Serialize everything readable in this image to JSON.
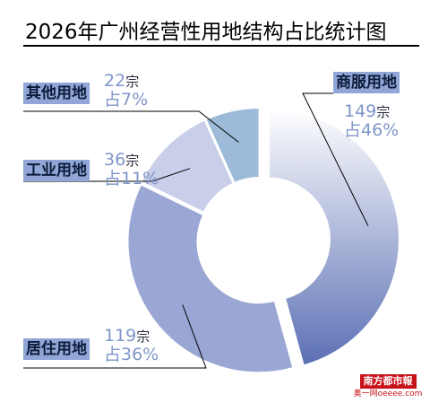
{
  "title": "2026年广州经营性用地结构占比统计图",
  "chart_data": {
    "type": "pie",
    "variant": "donut",
    "title": "2026年广州经营性用地结构占比统计图",
    "categories": [
      "商服用地",
      "居住用地",
      "工业用地",
      "其他用地"
    ],
    "values": [
      149,
      119,
      36,
      22
    ],
    "percent_labels": [
      "46%",
      "36%",
      "11%",
      "7%"
    ],
    "unit": "宗",
    "percent_prefix": "占",
    "count_text": [
      "149",
      "119",
      "36",
      "22"
    ],
    "colors": [
      "#5b6fb4",
      "#9aa6d4",
      "#c9cfe9",
      "#9dbbd9"
    ],
    "label_background": "#8fa6d6",
    "value_color": "#7f96c8"
  },
  "brand": {
    "name": "南方都市報",
    "site": "奥一网oeeee.com"
  }
}
